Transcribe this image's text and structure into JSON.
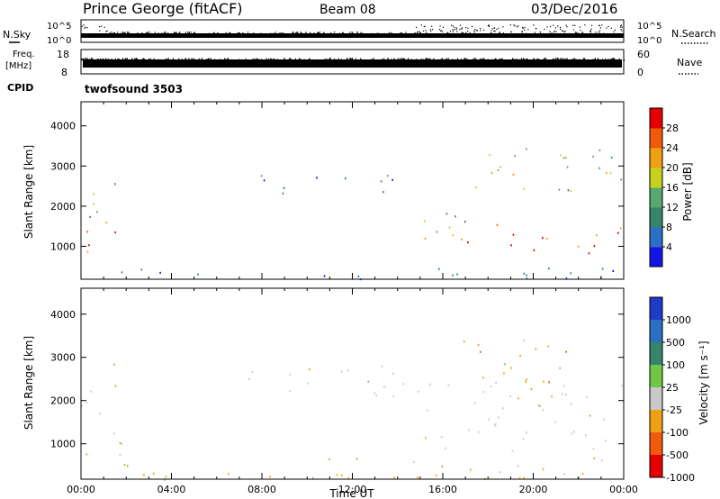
{
  "header": {
    "station": "Prince George (fitACF)",
    "beam": "Beam 08",
    "date": "03/Dec/2016"
  },
  "panels": {
    "nsky": {
      "left_label": "N.Sky",
      "right_label": "N.Search",
      "left_ticks": [
        "10^5",
        "10^0"
      ],
      "right_ticks": [
        "10^5",
        "10^0"
      ]
    },
    "freq": {
      "left_label_1": "Freq.",
      "left_label_2": "[MHz]",
      "left_ticks": [
        "18",
        "8"
      ],
      "right_ticks": [
        "60",
        "0"
      ],
      "right_label": "Nave"
    },
    "cpid": {
      "label": "CPID",
      "program": "twofsound 3503"
    }
  },
  "chart_data": [
    {
      "type": "heatmap",
      "name": "power",
      "ylabel": "Slant Range [km]",
      "ylim": [
        180,
        4600
      ],
      "yticks": [
        1000,
        2000,
        3000,
        4000
      ],
      "xlim": [
        0,
        24
      ],
      "colorbar_label": "Power [dB]",
      "colorbar_ticks": [
        "4",
        "8",
        "12",
        "16",
        "20",
        "24",
        "28"
      ],
      "colorbar_colors": [
        "#1414e6",
        "#2c6fc4",
        "#35856a",
        "#58a870",
        "#c8d21e",
        "#f0a014",
        "#f05a0a",
        "#e60000"
      ],
      "scatter_bands": [
        {
          "t0": 0.0,
          "t1": 1.6,
          "r0": 700,
          "r1": 1600,
          "dominant": "high"
        },
        {
          "t0": 0.2,
          "t1": 1.8,
          "r0": 1500,
          "r1": 2900,
          "dominant": "mid"
        },
        {
          "t0": 6.6,
          "t1": 14.5,
          "r0": 2300,
          "r1": 2800,
          "dominant": "low-mid"
        },
        {
          "t0": 14.5,
          "t1": 17.0,
          "r0": 1200,
          "r1": 2500,
          "dominant": "mid"
        },
        {
          "t0": 16.8,
          "t1": 24.0,
          "r0": 800,
          "r1": 1600,
          "dominant": "high"
        },
        {
          "t0": 16.8,
          "t1": 24.0,
          "r0": 2200,
          "r1": 3500,
          "dominant": "mid"
        },
        {
          "t0": 0.0,
          "t1": 24.0,
          "r0": 180,
          "r1": 500,
          "dominant": "low"
        }
      ]
    },
    {
      "type": "heatmap",
      "name": "velocity",
      "xlabel": "Time UT",
      "ylabel": "Slant Range [km]",
      "ylim": [
        180,
        4600
      ],
      "yticks": [
        1000,
        2000,
        3000,
        4000
      ],
      "xlim": [
        0,
        24
      ],
      "xticks": [
        "00:00",
        "04:00",
        "08:00",
        "12:00",
        "16:00",
        "20:00",
        "00:00"
      ],
      "colorbar_label": "Velocity [m s⁻¹]",
      "colorbar_ticks": [
        "1000",
        "500",
        "100",
        "25",
        "-25",
        "-100",
        "-500",
        "-1000"
      ],
      "colorbar_colors": [
        "#1e3cc8",
        "#2c6fc4",
        "#35856a",
        "#6ec846",
        "#c8c8c8",
        "#f0a014",
        "#f05a0a",
        "#e60000"
      ],
      "scatter_bands": [
        {
          "t0": 0.0,
          "t1": 2.0,
          "r0": 700,
          "r1": 2900,
          "dominant": "gray"
        },
        {
          "t0": 6.6,
          "t1": 14.5,
          "r0": 2100,
          "r1": 2900,
          "dominant": "gray"
        },
        {
          "t0": 14.5,
          "t1": 24.0,
          "r0": 800,
          "r1": 2500,
          "dominant": "gray"
        },
        {
          "t0": 16.8,
          "t1": 22.0,
          "r0": 2000,
          "r1": 3500,
          "dominant": "orange"
        },
        {
          "t0": 0.0,
          "t1": 24.0,
          "r0": 180,
          "r1": 700,
          "dominant": "yellow-green"
        }
      ]
    }
  ]
}
